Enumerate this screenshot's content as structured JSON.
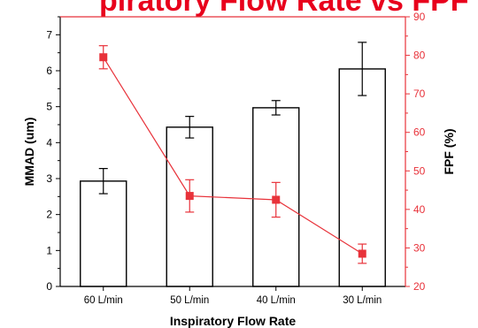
{
  "title_fragment": "piratory Flow Rate vs FPF and MMAD",
  "colors": {
    "bar_stroke": "#000000",
    "bar_fill": "#ffffff",
    "line": "#e8323a",
    "right_axis": "#e8323a",
    "title": "#e8001c"
  },
  "chart_data": {
    "type": "bar",
    "categories": [
      "60 L/min",
      "50 L/min",
      "40 L/min",
      "30 L/min"
    ],
    "xlabel": "Inspiratory Flow Rate",
    "ylabel": "MMAD (um)",
    "ylim": [
      0,
      7.5
    ],
    "yticks": [
      0,
      1,
      2,
      3,
      4,
      5,
      6,
      7
    ],
    "y2label": "FPF (%)",
    "y2lim": [
      20,
      90
    ],
    "y2ticks": [
      20,
      30,
      40,
      50,
      60,
      70,
      80,
      90
    ],
    "series": [
      {
        "axis": "left",
        "type": "bar",
        "values": [
          2.93,
          4.43,
          4.97,
          6.05
        ],
        "errors": [
          0.35,
          0.3,
          0.2,
          0.74
        ]
      },
      {
        "axis": "right",
        "type": "line",
        "values": [
          79.5,
          43.5,
          42.5,
          28.5
        ],
        "errors": [
          3.0,
          4.2,
          4.5,
          2.5
        ]
      }
    ]
  }
}
